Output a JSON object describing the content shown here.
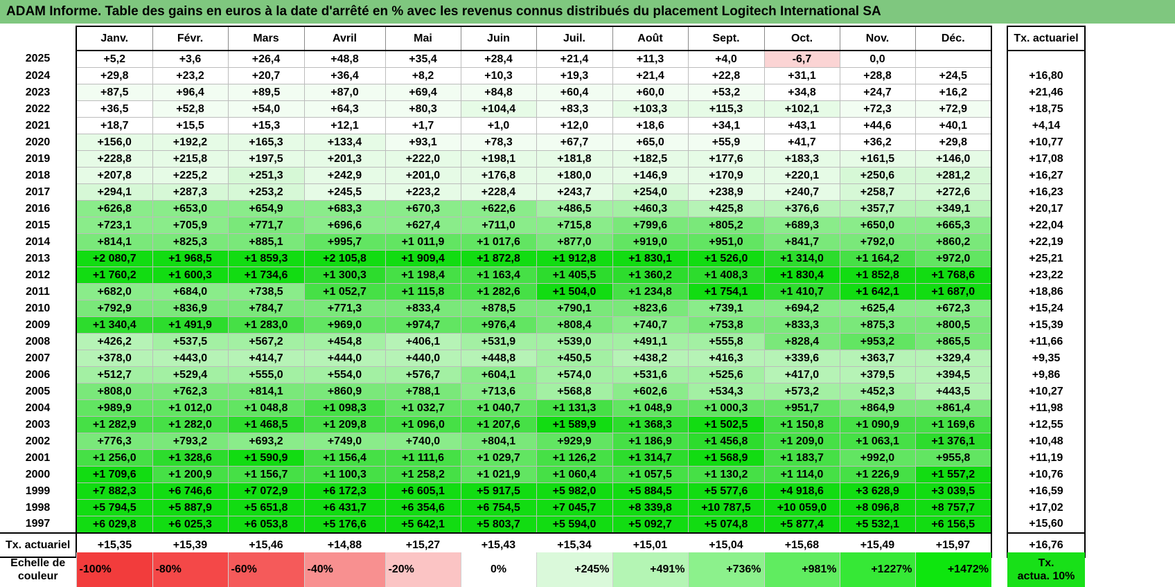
{
  "title": "ADAM Informe. Table des gains en euros à la date d'arrêté en % avec les revenus connus distribués du placement Logitech International SA",
  "months": [
    "Janv.",
    "Févr.",
    "Mars",
    "Avril",
    "Mai",
    "Juin",
    "Juil.",
    "Août",
    "Sept.",
    "Oct.",
    "Nov.",
    "Déc."
  ],
  "actuarial_header": "Tx. actuariel",
  "rows": [
    {
      "year": "2025",
      "values": [
        "+5,2",
        "+3,6",
        "+26,4",
        "+48,8",
        "+35,4",
        "+28,4",
        "+21,4",
        "+11,3",
        "+4,0",
        "-6,7",
        "0,0",
        ""
      ],
      "rate": ""
    },
    {
      "year": "2024",
      "values": [
        "+29,8",
        "+23,2",
        "+20,7",
        "+36,4",
        "+8,2",
        "+10,3",
        "+19,3",
        "+21,4",
        "+22,8",
        "+31,1",
        "+28,8",
        "+24,5"
      ],
      "rate": "+16,80"
    },
    {
      "year": "2023",
      "values": [
        "+87,5",
        "+96,4",
        "+89,5",
        "+87,0",
        "+69,4",
        "+84,8",
        "+60,4",
        "+60,0",
        "+53,2",
        "+34,8",
        "+24,7",
        "+16,2"
      ],
      "rate": "+21,46"
    },
    {
      "year": "2022",
      "values": [
        "+36,5",
        "+52,8",
        "+54,0",
        "+64,3",
        "+80,3",
        "+104,4",
        "+83,3",
        "+103,3",
        "+115,3",
        "+102,1",
        "+72,3",
        "+72,9"
      ],
      "rate": "+18,75"
    },
    {
      "year": "2021",
      "values": [
        "+18,7",
        "+15,5",
        "+15,3",
        "+12,1",
        "+1,7",
        "+1,0",
        "+12,0",
        "+18,6",
        "+34,1",
        "+43,1",
        "+44,6",
        "+40,1"
      ],
      "rate": "+4,14"
    },
    {
      "year": "2020",
      "values": [
        "+156,0",
        "+192,2",
        "+165,3",
        "+133,4",
        "+93,1",
        "+78,3",
        "+67,7",
        "+65,0",
        "+55,9",
        "+41,7",
        "+36,2",
        "+29,8"
      ],
      "rate": "+10,77"
    },
    {
      "year": "2019",
      "values": [
        "+228,8",
        "+215,8",
        "+197,5",
        "+201,3",
        "+222,0",
        "+198,1",
        "+181,8",
        "+182,5",
        "+177,6",
        "+183,3",
        "+161,5",
        "+146,0"
      ],
      "rate": "+17,08"
    },
    {
      "year": "2018",
      "values": [
        "+207,8",
        "+225,2",
        "+251,3",
        "+242,9",
        "+201,0",
        "+176,8",
        "+180,0",
        "+146,9",
        "+170,9",
        "+220,1",
        "+250,6",
        "+281,2"
      ],
      "rate": "+16,27"
    },
    {
      "year": "2017",
      "values": [
        "+294,1",
        "+287,3",
        "+253,2",
        "+245,5",
        "+223,2",
        "+228,4",
        "+243,7",
        "+254,0",
        "+238,9",
        "+240,7",
        "+258,7",
        "+272,6"
      ],
      "rate": "+16,23"
    },
    {
      "year": "2016",
      "values": [
        "+626,8",
        "+653,0",
        "+654,9",
        "+683,3",
        "+670,3",
        "+622,6",
        "+486,5",
        "+460,3",
        "+425,8",
        "+376,6",
        "+357,7",
        "+349,1"
      ],
      "rate": "+20,17"
    },
    {
      "year": "2015",
      "values": [
        "+723,1",
        "+705,9",
        "+771,7",
        "+696,6",
        "+627,4",
        "+711,0",
        "+715,8",
        "+799,6",
        "+805,2",
        "+689,3",
        "+650,0",
        "+665,3"
      ],
      "rate": "+22,04"
    },
    {
      "year": "2014",
      "values": [
        "+814,1",
        "+825,3",
        "+885,1",
        "+995,7",
        "+1 011,9",
        "+1 017,6",
        "+877,0",
        "+919,0",
        "+951,0",
        "+841,7",
        "+792,0",
        "+860,2"
      ],
      "rate": "+22,19"
    },
    {
      "year": "2013",
      "values": [
        "+2 080,7",
        "+1 968,5",
        "+1 859,3",
        "+2 105,8",
        "+1 909,4",
        "+1 872,8",
        "+1 912,8",
        "+1 830,1",
        "+1 526,0",
        "+1 314,0",
        "+1 164,2",
        "+972,0"
      ],
      "rate": "+25,21"
    },
    {
      "year": "2012",
      "values": [
        "+1 760,2",
        "+1 600,3",
        "+1 734,6",
        "+1 300,3",
        "+1 198,4",
        "+1 163,4",
        "+1 405,5",
        "+1 360,2",
        "+1 408,3",
        "+1 830,4",
        "+1 852,8",
        "+1 768,6"
      ],
      "rate": "+23,22"
    },
    {
      "year": "2011",
      "values": [
        "+682,0",
        "+684,0",
        "+738,5",
        "+1 052,7",
        "+1 115,8",
        "+1 282,6",
        "+1 504,0",
        "+1 234,8",
        "+1 754,1",
        "+1 410,7",
        "+1 642,1",
        "+1 687,0"
      ],
      "rate": "+18,86"
    },
    {
      "year": "2010",
      "values": [
        "+792,9",
        "+836,9",
        "+784,7",
        "+771,3",
        "+833,4",
        "+878,5",
        "+790,1",
        "+823,6",
        "+739,1",
        "+694,2",
        "+625,4",
        "+672,3"
      ],
      "rate": "+15,24"
    },
    {
      "year": "2009",
      "values": [
        "+1 340,4",
        "+1 491,9",
        "+1 283,0",
        "+969,0",
        "+974,7",
        "+976,4",
        "+808,4",
        "+740,7",
        "+753,8",
        "+833,3",
        "+875,3",
        "+800,5"
      ],
      "rate": "+15,39"
    },
    {
      "year": "2008",
      "values": [
        "+426,2",
        "+537,5",
        "+567,2",
        "+454,8",
        "+406,1",
        "+531,9",
        "+539,0",
        "+491,1",
        "+555,8",
        "+828,4",
        "+953,2",
        "+865,5"
      ],
      "rate": "+11,66"
    },
    {
      "year": "2007",
      "values": [
        "+378,0",
        "+443,0",
        "+414,7",
        "+444,0",
        "+440,0",
        "+448,8",
        "+450,5",
        "+438,2",
        "+416,3",
        "+339,6",
        "+363,7",
        "+329,4"
      ],
      "rate": "+9,35"
    },
    {
      "year": "2006",
      "values": [
        "+512,7",
        "+529,4",
        "+555,0",
        "+554,0",
        "+576,7",
        "+604,1",
        "+574,0",
        "+531,6",
        "+525,6",
        "+417,0",
        "+379,5",
        "+394,5"
      ],
      "rate": "+9,86"
    },
    {
      "year": "2005",
      "values": [
        "+808,0",
        "+762,3",
        "+814,1",
        "+860,9",
        "+788,1",
        "+713,6",
        "+568,8",
        "+602,6",
        "+534,3",
        "+573,2",
        "+452,3",
        "+443,5"
      ],
      "rate": "+10,27"
    },
    {
      "year": "2004",
      "values": [
        "+989,9",
        "+1 012,0",
        "+1 048,8",
        "+1 098,3",
        "+1 032,7",
        "+1 040,7",
        "+1 131,3",
        "+1 048,9",
        "+1 000,3",
        "+951,7",
        "+864,9",
        "+861,4"
      ],
      "rate": "+11,98"
    },
    {
      "year": "2003",
      "values": [
        "+1 282,9",
        "+1 282,0",
        "+1 468,5",
        "+1 209,8",
        "+1 096,0",
        "+1 207,6",
        "+1 589,9",
        "+1 368,3",
        "+1 502,5",
        "+1 150,8",
        "+1 090,9",
        "+1 169,6"
      ],
      "rate": "+12,55"
    },
    {
      "year": "2002",
      "values": [
        "+776,3",
        "+793,2",
        "+693,2",
        "+749,0",
        "+740,0",
        "+804,1",
        "+929,9",
        "+1 186,9",
        "+1 456,8",
        "+1 209,0",
        "+1 063,1",
        "+1 376,1"
      ],
      "rate": "+10,48"
    },
    {
      "year": "2001",
      "values": [
        "+1 256,0",
        "+1 328,6",
        "+1 590,9",
        "+1 156,4",
        "+1 111,6",
        "+1 029,7",
        "+1 126,2",
        "+1 314,7",
        "+1 568,9",
        "+1 183,7",
        "+992,0",
        "+955,8"
      ],
      "rate": "+11,19"
    },
    {
      "year": "2000",
      "values": [
        "+1 709,6",
        "+1 200,9",
        "+1 156,7",
        "+1 100,3",
        "+1 258,2",
        "+1 021,9",
        "+1 060,4",
        "+1 057,5",
        "+1 130,2",
        "+1 114,0",
        "+1 226,9",
        "+1 557,2"
      ],
      "rate": "+10,76"
    },
    {
      "year": "1999",
      "values": [
        "+7 882,3",
        "+6 746,6",
        "+7 072,9",
        "+6 172,3",
        "+6 605,1",
        "+5 917,5",
        "+5 982,0",
        "+5 884,5",
        "+5 577,6",
        "+4 918,6",
        "+3 628,9",
        "+3 039,5"
      ],
      "rate": "+16,59"
    },
    {
      "year": "1998",
      "values": [
        "+5 794,5",
        "+5 887,9",
        "+5 651,8",
        "+6 431,7",
        "+6 354,6",
        "+6 754,5",
        "+7 045,7",
        "+8 339,8",
        "+10 787,5",
        "+10 059,0",
        "+8 096,8",
        "+8 757,7"
      ],
      "rate": "+17,02"
    },
    {
      "year": "1997",
      "values": [
        "+6 029,8",
        "+6 025,3",
        "+6 053,8",
        "+5 176,6",
        "+5 642,1",
        "+5 803,7",
        "+5 594,0",
        "+5 092,7",
        "+5 074,8",
        "+5 877,4",
        "+5 532,1",
        "+6 156,5"
      ],
      "rate": "+15,60"
    }
  ],
  "footer": {
    "label": "Tx. actuariel",
    "values": [
      "+15,35",
      "+15,39",
      "+15,46",
      "+14,88",
      "+15,27",
      "+15,43",
      "+15,34",
      "+15,01",
      "+15,04",
      "+15,68",
      "+15,49",
      "+15,97"
    ],
    "total": "+16,76"
  },
  "scale": {
    "label_line1": "Echelle de",
    "label_line2": "couleur",
    "steps": [
      {
        "label": "-100%",
        "color": "#f23c3c",
        "kind": "neg"
      },
      {
        "label": "-80%",
        "color": "#f44848",
        "kind": "neg"
      },
      {
        "label": "-60%",
        "color": "#f55a5a",
        "kind": "neg"
      },
      {
        "label": "-40%",
        "color": "#f89090",
        "kind": "neg"
      },
      {
        "label": "-20%",
        "color": "#fbc4c4",
        "kind": "neg"
      },
      {
        "label": "0%",
        "color": "#ffffff",
        "kind": "zero"
      },
      {
        "label": "+245%",
        "color": "#daf9da",
        "kind": "pos"
      },
      {
        "label": "+491%",
        "color": "#b4f5b4",
        "kind": "pos"
      },
      {
        "label": "+736%",
        "color": "#8cf18c",
        "kind": "pos"
      },
      {
        "label": "+981%",
        "color": "#60ec60",
        "kind": "pos"
      },
      {
        "label": "+1227%",
        "color": "#36e836",
        "kind": "pos"
      },
      {
        "label": "+1472%",
        "color": "#0ee60e",
        "kind": "pos"
      }
    ],
    "legend_line1": "Tx.",
    "legend_line2": "actua. 10%",
    "legend_color": "#18e018"
  },
  "colors": {
    "title_bg": "#7fc77f",
    "negative_cell": "#fbd4d4"
  }
}
